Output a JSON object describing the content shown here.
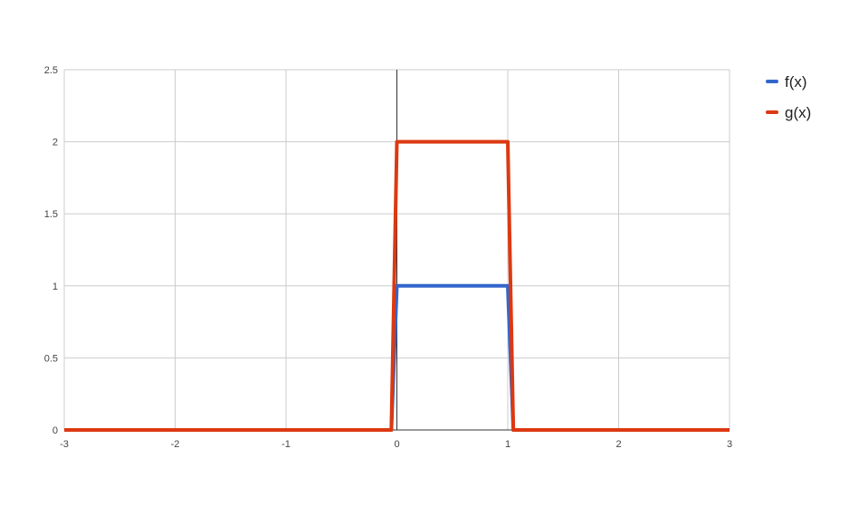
{
  "chart_data": {
    "type": "line",
    "title": "",
    "xlabel": "",
    "ylabel": "",
    "xlim": [
      -3,
      3
    ],
    "ylim": [
      0,
      2.5
    ],
    "x_ticks": [
      -3,
      -2,
      -1,
      0,
      1,
      2,
      3
    ],
    "y_ticks": [
      0,
      0.5,
      1,
      1.5,
      2,
      2.5
    ],
    "x_tick_labels": [
      "-3",
      "-2",
      "-1",
      "0",
      "1",
      "2",
      "3"
    ],
    "y_tick_labels": [
      "0",
      "0.5",
      "1",
      "1.5",
      "2",
      "2.5"
    ],
    "grid": true,
    "legend_position": "top-right",
    "series": [
      {
        "name": "f(x)",
        "color": "#3366cc",
        "x": [
          -3,
          -0.05,
          0,
          1,
          1.05,
          3
        ],
        "y": [
          0,
          0,
          1,
          1,
          0,
          0
        ]
      },
      {
        "name": "g(x)",
        "color": "#dc3912",
        "x": [
          -3,
          -0.05,
          0,
          1,
          1.05,
          3
        ],
        "y": [
          0,
          0,
          2,
          2,
          0,
          0
        ]
      }
    ]
  }
}
